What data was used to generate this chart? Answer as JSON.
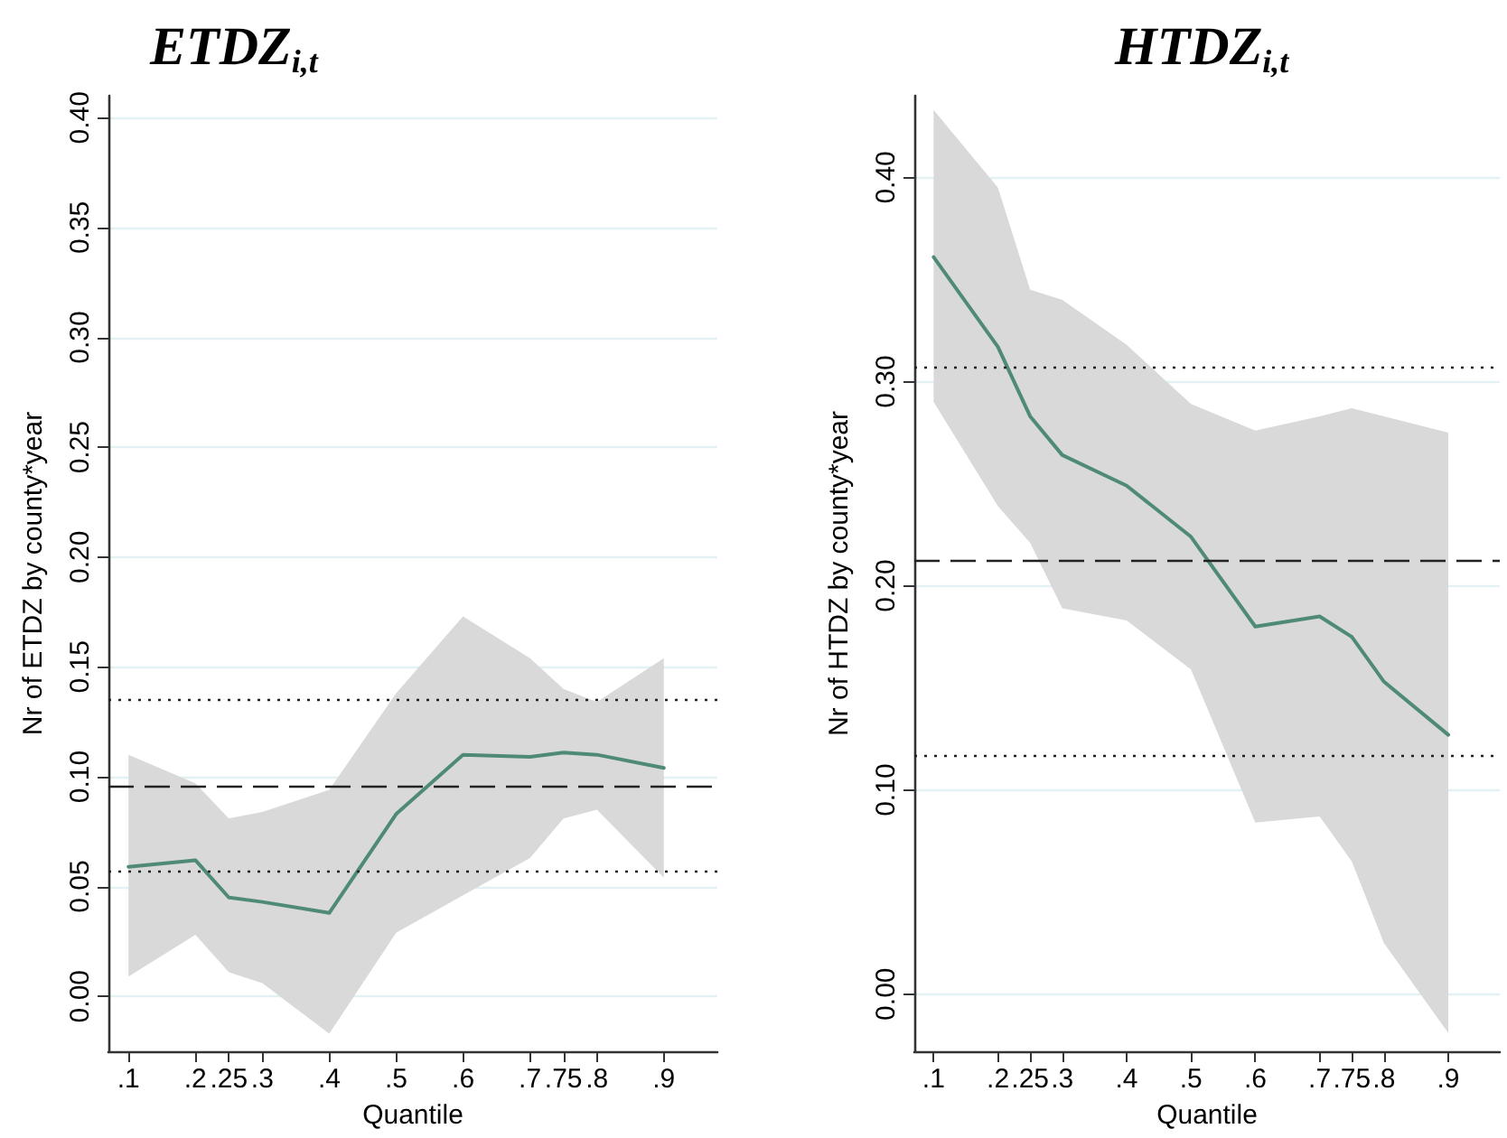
{
  "chart_data": [
    {
      "type": "line",
      "title": "ETDZ$_{i,t}$",
      "xlabel": "Quantile",
      "ylabel": "Nr of ETDZ by county*year",
      "marker": "none",
      "grid": "y",
      "x": [
        0.1,
        0.2,
        0.25,
        0.3,
        0.4,
        0.5,
        0.6,
        0.7,
        0.75,
        0.8,
        0.9
      ],
      "series": [
        {
          "color": "#4f8a78",
          "values": [
            0.059,
            0.062,
            0.045,
            0.043,
            0.038,
            0.083,
            0.11,
            0.109,
            0.111,
            0.11,
            0.104
          ],
          "lower": [
            0.009,
            0.028,
            0.011,
            0.006,
            -0.017,
            0.029,
            0.046,
            0.063,
            0.081,
            0.085,
            0.054
          ],
          "upper": [
            0.11,
            0.097,
            0.081,
            0.084,
            0.094,
            0.138,
            0.173,
            0.154,
            0.14,
            0.134,
            0.154
          ]
        }
      ],
      "xlim": [
        0.07,
        0.98
      ],
      "ylim": [
        -0.025,
        0.41
      ],
      "xticks": [
        {
          "value": 0.1,
          "label": ".1"
        },
        {
          "value": 0.2,
          "label": ".2"
        },
        {
          "value": 0.25,
          "label": ".25"
        },
        {
          "value": 0.3,
          "label": ".3"
        },
        {
          "value": 0.4,
          "label": ".4"
        },
        {
          "value": 0.5,
          "label": ".5"
        },
        {
          "value": 0.6,
          "label": ".6"
        },
        {
          "value": 0.7,
          "label": ".7"
        },
        {
          "value": 0.75,
          "label": ".75"
        },
        {
          "value": 0.8,
          "label": ".8"
        },
        {
          "value": 0.9,
          "label": ".9"
        }
      ],
      "yticks": [
        {
          "value": 0,
          "label": "0.00"
        },
        {
          "value": 0.05,
          "label": "0.05"
        },
        {
          "value": 0.1,
          "label": "0.10"
        },
        {
          "value": 0.15,
          "label": "0.15"
        },
        {
          "value": 0.2,
          "label": "0.20"
        },
        {
          "value": 0.25,
          "label": "0.25"
        },
        {
          "value": 0.3,
          "label": "0.30"
        },
        {
          "value": 0.35,
          "label": "0.35"
        },
        {
          "value": 0.4,
          "label": "0.40"
        }
      ],
      "ref_lines": [
        {
          "axis": "y",
          "value": 0.135,
          "line_style": "dotted",
          "color": "#222222"
        },
        {
          "axis": "y",
          "value": 0.096,
          "line_style": "dashed",
          "color": "#222222"
        },
        {
          "axis": "y",
          "value": 0.057,
          "line_style": "dotted",
          "color": "#222222"
        }
      ]
    },
    {
      "type": "line",
      "title": "HTDZ$_{i,t}$",
      "xlabel": "Quantile",
      "ylabel": "Nr of HTDZ by county*year",
      "marker": "none",
      "grid": "y",
      "x": [
        0.1,
        0.2,
        0.25,
        0.3,
        0.4,
        0.5,
        0.6,
        0.7,
        0.75,
        0.8,
        0.9
      ],
      "series": [
        {
          "color": "#4f8a78",
          "values": [
            0.361,
            0.317,
            0.283,
            0.264,
            0.249,
            0.224,
            0.18,
            0.185,
            0.175,
            0.153,
            0.127
          ],
          "lower": [
            0.29,
            0.239,
            0.221,
            0.189,
            0.183,
            0.159,
            0.084,
            0.087,
            0.065,
            0.025,
            -0.019
          ],
          "upper": [
            0.433,
            0.395,
            0.345,
            0.34,
            0.318,
            0.289,
            0.276,
            0.283,
            0.287,
            0.283,
            0.275
          ]
        }
      ],
      "xlim": [
        0.07,
        0.98
      ],
      "ylim": [
        -0.028,
        0.44
      ],
      "xticks": [
        {
          "value": 0.1,
          "label": ".1"
        },
        {
          "value": 0.2,
          "label": ".2"
        },
        {
          "value": 0.25,
          "label": ".25"
        },
        {
          "value": 0.3,
          "label": ".3"
        },
        {
          "value": 0.4,
          "label": ".4"
        },
        {
          "value": 0.5,
          "label": ".5"
        },
        {
          "value": 0.6,
          "label": ".6"
        },
        {
          "value": 0.7,
          "label": ".7"
        },
        {
          "value": 0.75,
          "label": ".75"
        },
        {
          "value": 0.8,
          "label": ".8"
        },
        {
          "value": 0.9,
          "label": ".9"
        }
      ],
      "yticks": [
        {
          "value": 0,
          "label": "0.00"
        },
        {
          "value": 0.1,
          "label": "0.10"
        },
        {
          "value": 0.2,
          "label": "0.20"
        },
        {
          "value": 0.3,
          "label": "0.30"
        },
        {
          "value": 0.4,
          "label": "0.40"
        }
      ],
      "ref_lines": [
        {
          "axis": "y",
          "value": 0.307,
          "line_style": "dotted",
          "color": "#222222"
        },
        {
          "axis": "y",
          "value": 0.212,
          "line_style": "dashed",
          "color": "#222222"
        },
        {
          "axis": "y",
          "value": 0.117,
          "line_style": "dotted",
          "color": "#222222"
        }
      ]
    }
  ]
}
